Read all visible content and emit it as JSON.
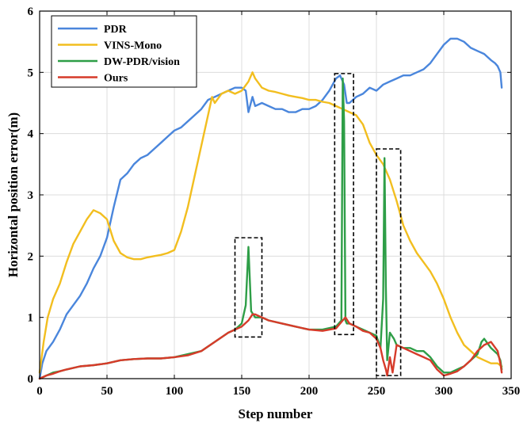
{
  "chart_data": {
    "type": "line",
    "xlabel": "Step number",
    "ylabel": "Horizontal position error(m)",
    "xlim": [
      0,
      350
    ],
    "ylim": [
      0,
      6
    ],
    "xticks": [
      0,
      50,
      100,
      150,
      200,
      250,
      300,
      350
    ],
    "yticks": [
      0,
      1,
      2,
      3,
      4,
      5,
      6
    ],
    "grid": true,
    "legend_position": "top-left",
    "series": [
      {
        "name": "PDR",
        "color": "#4a86dc",
        "x": [
          0,
          2,
          5,
          10,
          15,
          20,
          25,
          30,
          35,
          40,
          45,
          50,
          55,
          60,
          65,
          70,
          75,
          80,
          85,
          90,
          95,
          100,
          105,
          110,
          115,
          120,
          125,
          130,
          135,
          140,
          145,
          150,
          153,
          155,
          158,
          160,
          165,
          170,
          175,
          180,
          185,
          190,
          195,
          200,
          205,
          210,
          215,
          220,
          223,
          226,
          228,
          230,
          235,
          240,
          245,
          250,
          255,
          260,
          265,
          270,
          275,
          280,
          285,
          290,
          295,
          300,
          305,
          310,
          315,
          320,
          325,
          330,
          335,
          338,
          340,
          342,
          343
        ],
        "y": [
          0.0,
          0.25,
          0.45,
          0.6,
          0.8,
          1.05,
          1.2,
          1.35,
          1.55,
          1.8,
          2.0,
          2.3,
          2.8,
          3.25,
          3.35,
          3.5,
          3.6,
          3.65,
          3.75,
          3.85,
          3.95,
          4.05,
          4.1,
          4.2,
          4.3,
          4.4,
          4.55,
          4.6,
          4.65,
          4.7,
          4.75,
          4.75,
          4.7,
          4.35,
          4.6,
          4.45,
          4.5,
          4.45,
          4.4,
          4.4,
          4.35,
          4.35,
          4.4,
          4.4,
          4.45,
          4.55,
          4.7,
          4.9,
          4.95,
          4.8,
          4.5,
          4.5,
          4.6,
          4.65,
          4.75,
          4.7,
          4.8,
          4.85,
          4.9,
          4.95,
          4.95,
          5.0,
          5.05,
          5.15,
          5.3,
          5.45,
          5.55,
          5.55,
          5.5,
          5.4,
          5.35,
          5.3,
          5.2,
          5.15,
          5.1,
          5.0,
          4.75
        ]
      },
      {
        "name": "VINS-Mono",
        "color": "#f2be1f",
        "x": [
          0,
          3,
          6,
          10,
          15,
          20,
          25,
          30,
          35,
          40,
          45,
          50,
          55,
          60,
          65,
          70,
          75,
          80,
          85,
          90,
          95,
          100,
          105,
          110,
          115,
          120,
          125,
          128,
          130,
          135,
          140,
          145,
          150,
          155,
          158,
          160,
          165,
          170,
          175,
          180,
          185,
          190,
          195,
          200,
          205,
          210,
          215,
          220,
          225,
          230,
          235,
          240,
          245,
          250,
          255,
          260,
          265,
          270,
          275,
          280,
          285,
          290,
          295,
          300,
          305,
          310,
          315,
          320,
          325,
          330,
          335,
          340,
          343
        ],
        "y": [
          0.1,
          0.6,
          1.0,
          1.3,
          1.55,
          1.9,
          2.2,
          2.4,
          2.6,
          2.75,
          2.7,
          2.6,
          2.25,
          2.05,
          1.98,
          1.95,
          1.95,
          1.98,
          2.0,
          2.02,
          2.05,
          2.1,
          2.4,
          2.8,
          3.3,
          3.8,
          4.3,
          4.6,
          4.5,
          4.65,
          4.7,
          4.65,
          4.7,
          4.85,
          5.0,
          4.9,
          4.75,
          4.7,
          4.68,
          4.65,
          4.62,
          4.6,
          4.58,
          4.55,
          4.55,
          4.52,
          4.5,
          4.45,
          4.4,
          4.35,
          4.3,
          4.15,
          3.85,
          3.65,
          3.5,
          3.25,
          2.9,
          2.5,
          2.25,
          2.05,
          1.9,
          1.75,
          1.55,
          1.3,
          1.0,
          0.75,
          0.55,
          0.45,
          0.35,
          0.3,
          0.25,
          0.25,
          0.2
        ]
      },
      {
        "name": "DW-PDR/vision",
        "color": "#2e9e47",
        "x": [
          0,
          5,
          10,
          15,
          20,
          30,
          40,
          50,
          60,
          70,
          80,
          90,
          100,
          110,
          120,
          130,
          140,
          145,
          150,
          153,
          155,
          157,
          160,
          165,
          170,
          180,
          190,
          200,
          210,
          220,
          224,
          225,
          226,
          227,
          228,
          230,
          235,
          240,
          245,
          250,
          253,
          255,
          256,
          257,
          258,
          260,
          263,
          265,
          270,
          275,
          280,
          285,
          290,
          295,
          300,
          305,
          310,
          315,
          320,
          325,
          328,
          330,
          335,
          340,
          342,
          343
        ],
        "y": [
          0.0,
          0.05,
          0.1,
          0.12,
          0.15,
          0.2,
          0.22,
          0.25,
          0.3,
          0.32,
          0.33,
          0.33,
          0.35,
          0.4,
          0.45,
          0.6,
          0.75,
          0.8,
          0.9,
          1.2,
          2.15,
          1.1,
          1.0,
          1.0,
          0.95,
          0.9,
          0.85,
          0.8,
          0.8,
          0.85,
          0.95,
          4.9,
          4.2,
          0.95,
          0.9,
          0.9,
          0.85,
          0.8,
          0.75,
          0.7,
          0.5,
          1.3,
          3.6,
          1.5,
          0.3,
          0.75,
          0.65,
          0.55,
          0.5,
          0.5,
          0.45,
          0.45,
          0.35,
          0.2,
          0.1,
          0.1,
          0.15,
          0.2,
          0.3,
          0.4,
          0.6,
          0.65,
          0.5,
          0.4,
          0.3,
          0.15
        ]
      },
      {
        "name": "Ours",
        "color": "#d63b2a",
        "x": [
          0,
          5,
          10,
          15,
          20,
          30,
          40,
          50,
          60,
          70,
          80,
          90,
          100,
          110,
          120,
          130,
          140,
          145,
          150,
          155,
          158,
          160,
          165,
          170,
          180,
          190,
          200,
          210,
          220,
          225,
          227,
          230,
          235,
          240,
          245,
          250,
          253,
          255,
          257,
          258,
          260,
          262,
          265,
          270,
          275,
          280,
          285,
          290,
          295,
          300,
          305,
          310,
          315,
          320,
          325,
          330,
          335,
          340,
          342,
          343
        ],
        "y": [
          0.0,
          0.05,
          0.08,
          0.12,
          0.15,
          0.2,
          0.22,
          0.25,
          0.3,
          0.32,
          0.33,
          0.33,
          0.35,
          0.38,
          0.45,
          0.6,
          0.75,
          0.8,
          0.85,
          0.95,
          1.05,
          1.05,
          1.0,
          0.95,
          0.9,
          0.85,
          0.8,
          0.78,
          0.82,
          0.95,
          1.0,
          0.9,
          0.85,
          0.78,
          0.75,
          0.65,
          0.5,
          0.3,
          0.15,
          0.05,
          0.35,
          0.1,
          0.55,
          0.5,
          0.45,
          0.4,
          0.35,
          0.3,
          0.15,
          0.05,
          0.08,
          0.12,
          0.2,
          0.3,
          0.45,
          0.55,
          0.6,
          0.45,
          0.25,
          0.1
        ]
      }
    ],
    "annotations": [
      {
        "type": "dashed-box",
        "x": [
          145,
          165
        ],
        "y": [
          0.68,
          2.3
        ]
      },
      {
        "type": "dashed-box",
        "x": [
          219,
          233
        ],
        "y": [
          0.72,
          4.98
        ]
      },
      {
        "type": "dashed-box",
        "x": [
          250,
          268
        ],
        "y": [
          0.05,
          3.75
        ]
      }
    ]
  }
}
